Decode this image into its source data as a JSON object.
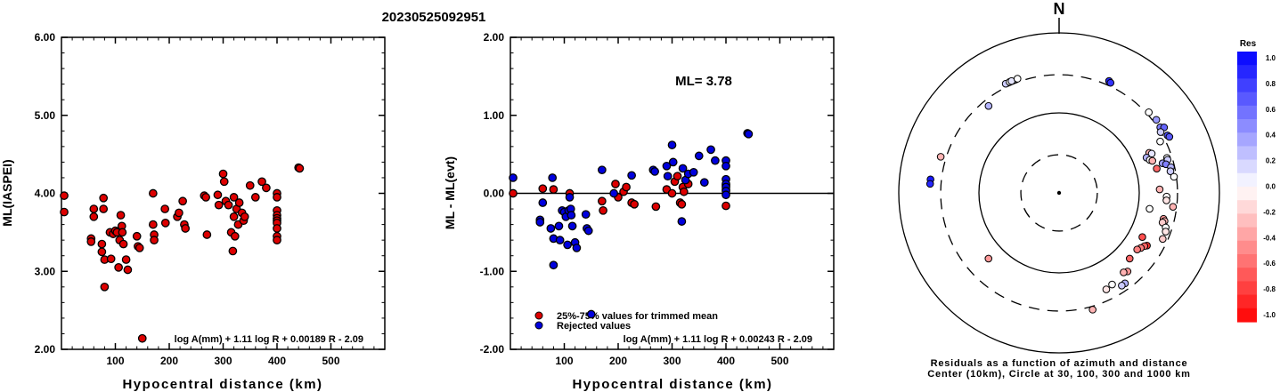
{
  "title": "20230525092951",
  "chart_data": [
    {
      "type": "scatter",
      "ylabel": "ML(IASPEI)",
      "xlabel": "Hypocentral distance (km)",
      "xlim": [
        0,
        600
      ],
      "ylim": [
        2.0,
        6.0
      ],
      "xticks": [
        "100",
        "200",
        "300",
        "400",
        "500"
      ],
      "yticks": [
        "2.00",
        "3.00",
        "4.00",
        "5.00",
        "6.00"
      ],
      "formula": "log A(mm) + 1.11 log R + 0.00189 R - 2.09",
      "point_color": "#dd0000",
      "points": [
        [
          5,
          3.97
        ],
        [
          5,
          3.76
        ],
        [
          55,
          3.42
        ],
        [
          55,
          3.38
        ],
        [
          60,
          3.8
        ],
        [
          60,
          3.7
        ],
        [
          75,
          3.35
        ],
        [
          75,
          3.25
        ],
        [
          78,
          3.8
        ],
        [
          78,
          3.94
        ],
        [
          80,
          3.15
        ],
        [
          80,
          2.8
        ],
        [
          90,
          3.5
        ],
        [
          92,
          3.16
        ],
        [
          96,
          3.48
        ],
        [
          100,
          3.52
        ],
        [
          103,
          3.5
        ],
        [
          106,
          3.05
        ],
        [
          108,
          3.4
        ],
        [
          110,
          3.72
        ],
        [
          112,
          3.58
        ],
        [
          113,
          3.5
        ],
        [
          115,
          3.35
        ],
        [
          120,
          3.15
        ],
        [
          123,
          3.02
        ],
        [
          140,
          3.45
        ],
        [
          142,
          3.32
        ],
        [
          145,
          3.3
        ],
        [
          150,
          2.14
        ],
        [
          170,
          4.0
        ],
        [
          170,
          3.6
        ],
        [
          172,
          3.47
        ],
        [
          172,
          3.4
        ],
        [
          192,
          3.8
        ],
        [
          193,
          3.62
        ],
        [
          215,
          3.7
        ],
        [
          218,
          3.75
        ],
        [
          225,
          3.9
        ],
        [
          228,
          3.6
        ],
        [
          230,
          3.55
        ],
        [
          265,
          3.97
        ],
        [
          268,
          3.95
        ],
        [
          270,
          3.47
        ],
        [
          290,
          3.98
        ],
        [
          292,
          3.85
        ],
        [
          300,
          4.25
        ],
        [
          302,
          4.15
        ],
        [
          305,
          3.9
        ],
        [
          310,
          3.85
        ],
        [
          315,
          3.5
        ],
        [
          318,
          3.26
        ],
        [
          320,
          3.95
        ],
        [
          320,
          3.7
        ],
        [
          322,
          3.45
        ],
        [
          325,
          3.8
        ],
        [
          328,
          3.6
        ],
        [
          330,
          3.88
        ],
        [
          335,
          3.75
        ],
        [
          338,
          3.65
        ],
        [
          340,
          3.7
        ],
        [
          350,
          4.1
        ],
        [
          360,
          3.95
        ],
        [
          372,
          4.15
        ],
        [
          380,
          4.07
        ],
        [
          400,
          4.0
        ],
        [
          400,
          3.95
        ],
        [
          400,
          3.78
        ],
        [
          400,
          3.72
        ],
        [
          400,
          3.68
        ],
        [
          400,
          3.65
        ],
        [
          400,
          3.62
        ],
        [
          400,
          3.55
        ],
        [
          400,
          3.45
        ],
        [
          400,
          3.4
        ],
        [
          440,
          4.33
        ],
        [
          442,
          4.32
        ]
      ]
    },
    {
      "type": "scatter",
      "ylabel": "ML - ML(evt)",
      "xlabel": "Hypocentral distance (km)",
      "xlim": [
        0,
        600
      ],
      "ylim": [
        -2.0,
        2.0
      ],
      "xticks": [
        "100",
        "200",
        "300",
        "400",
        "500"
      ],
      "yticks": [
        "-2.00",
        "-1.00",
        "0.00",
        "1.00",
        "2.00"
      ],
      "ml_label": "ML= 3.78",
      "formula": "log A(mm) + 1.11 log R + 0.00243 R - 2.09",
      "legend": [
        {
          "label": "25%-75% values for trimmed mean",
          "color": "#dd0000"
        },
        {
          "label": "Rejected values",
          "color": "#0000dd"
        }
      ],
      "series": [
        {
          "name": "25%-75% values for trimmed mean",
          "color": "#dd0000",
          "points": [
            [
              5,
              0.0
            ],
            [
              60,
              0.06
            ],
            [
              80,
              0.05
            ],
            [
              110,
              0.0
            ],
            [
              170,
              -0.1
            ],
            [
              172,
              -0.22
            ],
            [
              195,
              0.12
            ],
            [
              200,
              -0.05
            ],
            [
              210,
              0.02
            ],
            [
              215,
              0.08
            ],
            [
              225,
              -0.12
            ],
            [
              230,
              -0.14
            ],
            [
              270,
              -0.17
            ],
            [
              290,
              0.05
            ],
            [
              300,
              0.0
            ],
            [
              305,
              0.15
            ],
            [
              310,
              0.22
            ],
            [
              315,
              -0.12
            ],
            [
              318,
              -0.14
            ],
            [
              320,
              0.08
            ],
            [
              322,
              0.02
            ],
            [
              330,
              0.12
            ],
            [
              400,
              -0.16
            ],
            [
              400,
              0.05
            ],
            [
              400,
              0.1
            ]
          ]
        },
        {
          "name": "Rejected values",
          "color": "#0000dd",
          "points": [
            [
              5,
              0.2
            ],
            [
              55,
              -0.34
            ],
            [
              55,
              -0.37
            ],
            [
              60,
              -0.12
            ],
            [
              75,
              -0.45
            ],
            [
              78,
              0.2
            ],
            [
              80,
              -0.58
            ],
            [
              80,
              -0.92
            ],
            [
              90,
              -0.42
            ],
            [
              92,
              -0.6
            ],
            [
              96,
              -0.22
            ],
            [
              100,
              -0.24
            ],
            [
              103,
              -0.3
            ],
            [
              106,
              -0.66
            ],
            [
              108,
              -0.22
            ],
            [
              110,
              -0.05
            ],
            [
              112,
              -0.2
            ],
            [
              113,
              -0.28
            ],
            [
              115,
              -0.42
            ],
            [
              120,
              -0.63
            ],
            [
              123,
              -0.7
            ],
            [
              140,
              -0.27
            ],
            [
              142,
              -0.45
            ],
            [
              145,
              -0.48
            ],
            [
              150,
              -1.55
            ],
            [
              170,
              0.3
            ],
            [
              192,
              0.0
            ],
            [
              225,
              0.23
            ],
            [
              265,
              0.3
            ],
            [
              268,
              0.28
            ],
            [
              290,
              0.35
            ],
            [
              292,
              0.22
            ],
            [
              300,
              0.62
            ],
            [
              302,
              0.4
            ],
            [
              318,
              -0.36
            ],
            [
              320,
              0.32
            ],
            [
              325,
              0.17
            ],
            [
              330,
              0.25
            ],
            [
              340,
              0.27
            ],
            [
              350,
              0.48
            ],
            [
              360,
              0.14
            ],
            [
              372,
              0.56
            ],
            [
              380,
              0.42
            ],
            [
              400,
              0.42
            ],
            [
              400,
              0.35
            ],
            [
              400,
              0.18
            ],
            [
              400,
              0.12
            ],
            [
              400,
              0.08
            ],
            [
              400,
              0.03
            ],
            [
              400,
              -0.02
            ],
            [
              440,
              0.77
            ],
            [
              442,
              0.76
            ]
          ]
        }
      ]
    },
    {
      "type": "polar_scatter",
      "north_label": "N",
      "caption_line1": "Residuals as a function of azimuth and distance",
      "caption_line2": "Center (10km), Circle at 30, 100, 300 and 1000 km",
      "rings_km": [
        30,
        100,
        300,
        1000
      ],
      "ring_styles": [
        "dashed",
        "solid",
        "dashed",
        "solid"
      ],
      "colorbar_title": "Res",
      "colorbar_ticks": [
        "1.0",
        "0.8",
        "0.6",
        "0.4",
        "0.2",
        "0.0",
        "-0.2",
        "-0.4",
        "-0.6",
        "-0.8",
        "-1.0"
      ],
      "points": [
        {
          "az": 276,
          "d": 410,
          "res": 0.9
        },
        {
          "az": 274,
          "d": 410,
          "res": 0.85
        },
        {
          "az": 287,
          "d": 350,
          "res": -0.3
        },
        {
          "az": 321,
          "d": 250,
          "res": 0.3
        },
        {
          "az": 334,
          "d": 330,
          "res": 0.2
        },
        {
          "az": 336,
          "d": 330,
          "res": 0.0
        },
        {
          "az": 337,
          "d": 330,
          "res": 0.1
        },
        {
          "az": 340,
          "d": 330,
          "res": 0.0
        },
        {
          "az": 24,
          "d": 340,
          "res": 0.85
        },
        {
          "az": 25,
          "d": 330,
          "res": 0.8
        },
        {
          "az": 48,
          "d": 320,
          "res": 0.0
        },
        {
          "az": 53,
          "d": 330,
          "res": 0.4
        },
        {
          "az": 57,
          "d": 320,
          "res": 0.5
        },
        {
          "az": 58,
          "d": 350,
          "res": 0.6
        },
        {
          "az": 59,
          "d": 300,
          "res": 0.2
        },
        {
          "az": 62,
          "d": 340,
          "res": 0.7
        },
        {
          "az": 63,
          "d": 350,
          "res": 0.65
        },
        {
          "az": 63,
          "d": 260,
          "res": 0.0
        },
        {
          "az": 66,
          "d": 170,
          "res": -0.3
        },
        {
          "az": 67,
          "d": 180,
          "res": 0.1
        },
        {
          "az": 68,
          "d": 150,
          "res": 0.3
        },
        {
          "az": 70,
          "d": 160,
          "res": 0.0
        },
        {
          "az": 71,
          "d": 170,
          "res": -0.3
        },
        {
          "az": 72,
          "d": 260,
          "res": 0.0
        },
        {
          "az": 73,
          "d": 260,
          "res": 0.2
        },
        {
          "az": 74,
          "d": 220,
          "res": 0.4
        },
        {
          "az": 75,
          "d": 240,
          "res": 0.5
        },
        {
          "az": 76,
          "d": 180,
          "res": -0.6
        },
        {
          "az": 77,
          "d": 270,
          "res": 0.3
        },
        {
          "az": 79,
          "d": 260,
          "res": 0.2
        },
        {
          "az": 82,
          "d": 280,
          "res": 0.0
        },
        {
          "az": 88,
          "d": 180,
          "res": -0.3
        },
        {
          "az": 92,
          "d": 220,
          "res": 0.0
        },
        {
          "az": 94,
          "d": 220,
          "res": -0.1
        },
        {
          "az": 97,
          "d": 270,
          "res": -0.3
        },
        {
          "az": 100,
          "d": 140,
          "res": 0.0
        },
        {
          "az": 104,
          "d": 220,
          "res": -0.4
        },
        {
          "az": 105,
          "d": 230,
          "res": -0.3
        },
        {
          "az": 106,
          "d": 220,
          "res": -0.2
        },
        {
          "az": 108,
          "d": 250,
          "res": 0.0
        },
        {
          "az": 110,
          "d": 260,
          "res": -0.1
        },
        {
          "az": 114,
          "d": 260,
          "res": -0.2
        },
        {
          "az": 118,
          "d": 150,
          "res": -0.7
        },
        {
          "az": 121,
          "d": 190,
          "res": -0.8
        },
        {
          "az": 122,
          "d": 180,
          "res": -0.6
        },
        {
          "az": 124,
          "d": 170,
          "res": -0.5
        },
        {
          "az": 126,
          "d": 160,
          "res": -0.5
        },
        {
          "az": 133,
          "d": 160,
          "res": -0.6
        },
        {
          "az": 139,
          "d": 200,
          "res": -0.4
        },
        {
          "az": 141,
          "d": 190,
          "res": -0.3
        },
        {
          "az": 144,
          "d": 250,
          "res": 0.3
        },
        {
          "az": 146,
          "d": 250,
          "res": 0.2
        },
        {
          "az": 150,
          "d": 210,
          "res": 0.0
        },
        {
          "az": 154,
          "d": 220,
          "res": -0.1
        },
        {
          "az": 164,
          "d": 330,
          "res": -0.3
        },
        {
          "az": 227,
          "d": 160,
          "res": -0.4
        }
      ]
    }
  ]
}
